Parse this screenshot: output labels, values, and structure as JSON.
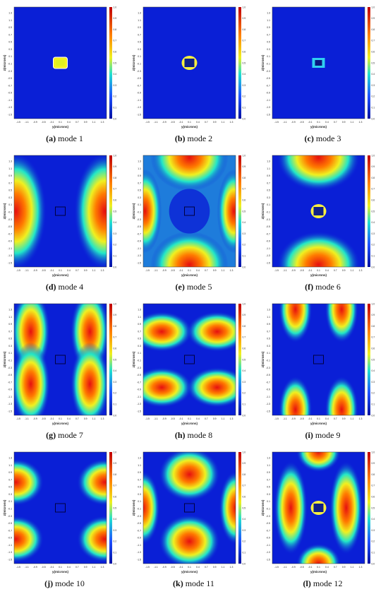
{
  "axes": {
    "xlabel": "y(microns)",
    "ylabel": "z(microns)",
    "xticks": [
      "-1.5",
      "-1.1",
      "-0.9",
      "-0.5",
      "-0.1",
      "0.1",
      "0.4",
      "0.7",
      "0.9",
      "1.1",
      "1.3"
    ],
    "yticks": [
      "1.3",
      "1.1",
      "0.9",
      "0.7",
      "0.5",
      "0.3",
      "0.1",
      "-0.1",
      "-0.3",
      "-0.5",
      "-0.7",
      "-0.9",
      "-1.1",
      "-1.3",
      "-1.5"
    ],
    "colorbar_ticks": [
      "1.0",
      "0.9",
      "0.8",
      "0.7",
      "0.6",
      "0.5",
      "0.4",
      "0.3",
      "0.2",
      "0.1",
      "0.0"
    ]
  },
  "colors": {
    "low": "#0a1fd6",
    "mid": "#22e6c8",
    "high": "#e61010"
  },
  "panels": [
    {
      "letter": "(a)",
      "title": "mode 1"
    },
    {
      "letter": "(b)",
      "title": "mode 2"
    },
    {
      "letter": "(c)",
      "title": "mode 3"
    },
    {
      "letter": "(d)",
      "title": "mode 4"
    },
    {
      "letter": "(e)",
      "title": "mode 5"
    },
    {
      "letter": "(f)",
      "title": "mode 6"
    },
    {
      "letter": "(g)",
      "title": "mode 7"
    },
    {
      "letter": "(h)",
      "title": "mode 8"
    },
    {
      "letter": "(i)",
      "title": "mode 9"
    },
    {
      "letter": "(j)",
      "title": "mode 10"
    },
    {
      "letter": "(k)",
      "title": "mode 11"
    },
    {
      "letter": "(l)",
      "title": "mode 12"
    }
  ]
}
